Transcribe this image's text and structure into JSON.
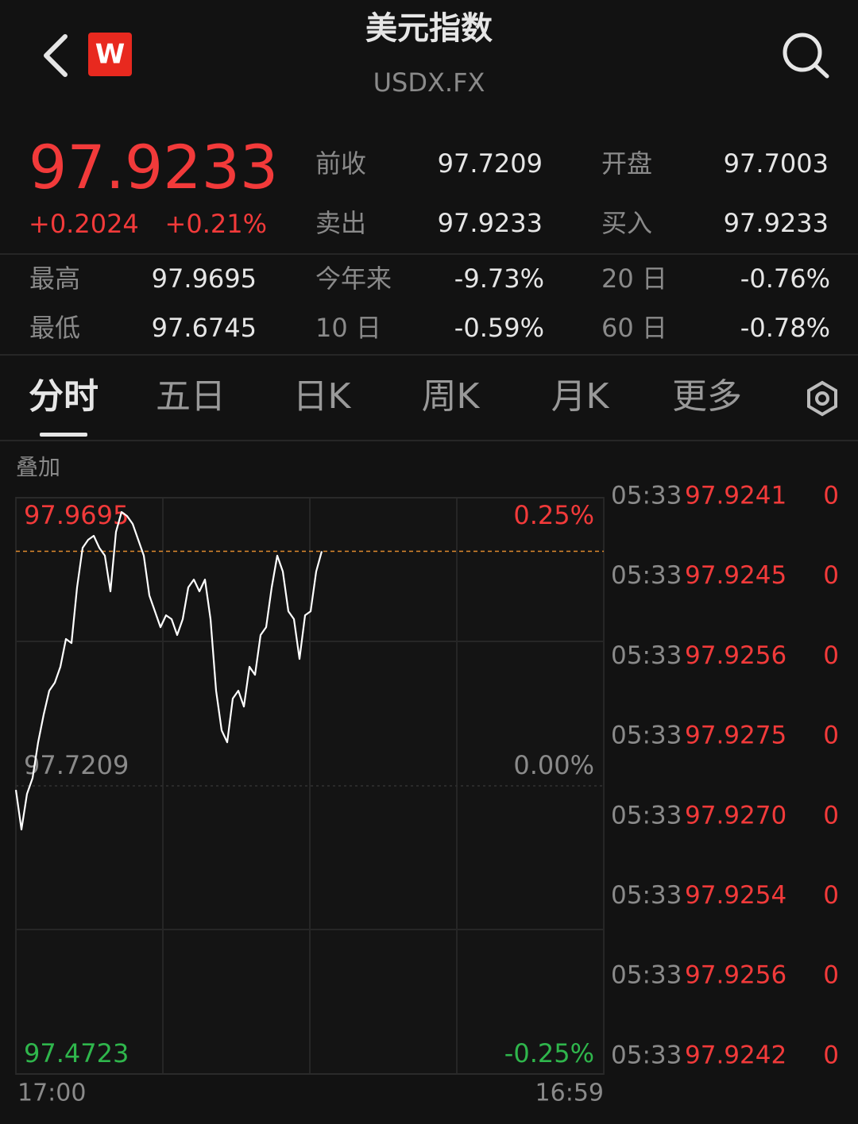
{
  "header": {
    "title": "美元指数",
    "subtitle": "USDX.FX",
    "badge": "W"
  },
  "quote": {
    "price": "97.9233",
    "change": "+0.2024",
    "change_pct": "+0.21%",
    "fields": [
      {
        "label": "前收",
        "value": "97.7209"
      },
      {
        "label": "开盘",
        "value": "97.7003"
      },
      {
        "label": "卖出",
        "value": "97.9233"
      },
      {
        "label": "买入",
        "value": "97.9233"
      }
    ]
  },
  "stats": [
    {
      "label": "最高",
      "value": "97.9695"
    },
    {
      "label": "今年来",
      "value": "-9.73%"
    },
    {
      "label": "20 日",
      "value": "-0.76%"
    },
    {
      "label": "最低",
      "value": "97.6745"
    },
    {
      "label": "10 日",
      "value": "-0.59%"
    },
    {
      "label": "60 日",
      "value": "-0.78%"
    }
  ],
  "tabs": [
    "分时",
    "五日",
    "日K",
    "周K",
    "月K",
    "更多"
  ],
  "overlay": "叠加",
  "chart_data": {
    "type": "line",
    "color": "#ffffff",
    "values": [
      97.7174,
      97.6832,
      97.714,
      97.7277,
      97.7585,
      97.7825,
      97.803,
      97.8099,
      97.8236,
      97.8476,
      97.8441,
      97.8921,
      97.9263,
      97.9332,
      97.9366,
      97.9263,
      97.9195,
      97.8887,
      97.94,
      97.9572,
      97.9537,
      97.9469,
      97.9332,
      97.9195,
      97.8852,
      97.8715,
      97.8578,
      97.8681,
      97.8647,
      97.851,
      97.8647,
      97.8921,
      97.8989,
      97.8887,
      97.8989,
      97.8647,
      97.803,
      97.7688,
      97.7585,
      97.7962,
      97.803,
      97.7893,
      97.8236,
      97.8167,
      97.851,
      97.8578,
      97.8921,
      97.9195,
      97.9058,
      97.8715,
      97.8647,
      97.8304,
      97.8681,
      97.8715,
      97.9058,
      97.9233
    ],
    "price_line": 97.9233,
    "ylim": [
      97.4723,
      97.9695
    ],
    "yticks": [
      97.9695,
      97.7209,
      97.4723
    ],
    "y2lim": [
      -0.25,
      0.25
    ],
    "y2ticks": [
      {
        "value": 0.25,
        "label": "0.25%"
      },
      {
        "value": 0,
        "label": "0.00%"
      },
      {
        "value": -0.25,
        "label": "-0.25%"
      }
    ],
    "x_start": "17:00",
    "x_end": "16:59"
  },
  "trades": [
    {
      "time": "05:33",
      "price": "97.9241",
      "volume": "0"
    },
    {
      "time": "05:33",
      "price": "97.9245",
      "volume": "0"
    },
    {
      "time": "05:33",
      "price": "97.9256",
      "volume": "0"
    },
    {
      "time": "05:33",
      "price": "97.9275",
      "volume": "0"
    },
    {
      "time": "05:33",
      "price": "97.9270",
      "volume": "0"
    },
    {
      "time": "05:33",
      "price": "97.9254",
      "volume": "0"
    },
    {
      "time": "05:33",
      "price": "97.9256",
      "volume": "0"
    },
    {
      "time": "05:33",
      "price": "97.9242",
      "volume": "0"
    }
  ]
}
